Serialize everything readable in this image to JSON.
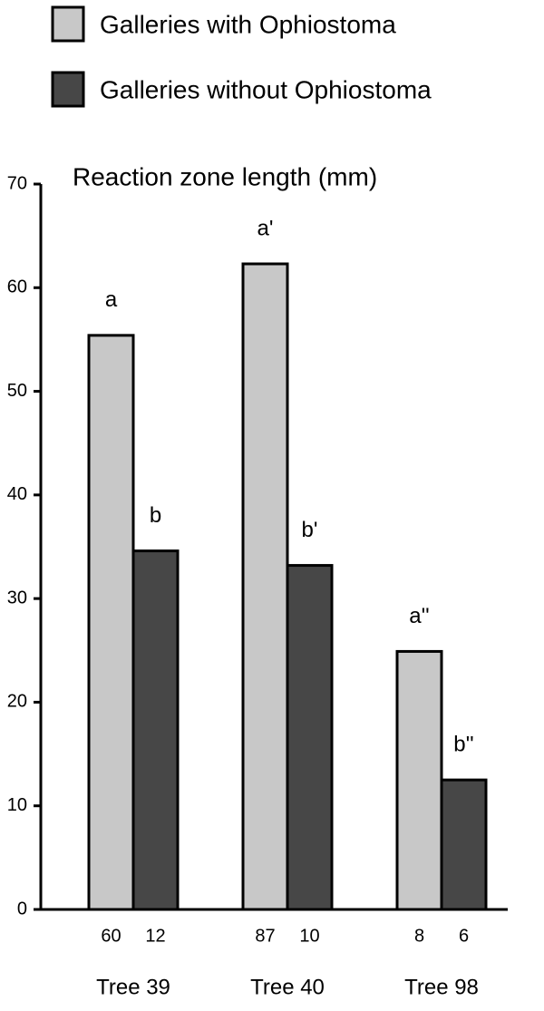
{
  "chart_data": {
    "type": "bar",
    "y_label": "Reaction zone length (mm)",
    "categories": [
      "Tree 39",
      "Tree 40",
      "Tree 98"
    ],
    "series": [
      {
        "name": "Galleries with Ophiostoma",
        "color": "#c8c8c8",
        "values": [
          55.4,
          62.3,
          24.9
        ],
        "letters": [
          "a",
          "a'",
          "a''"
        ],
        "sample_sizes": [
          60,
          87,
          8
        ]
      },
      {
        "name": "Galleries without Ophiostoma",
        "color": "#474747",
        "values": [
          34.6,
          33.2,
          12.5
        ],
        "letters": [
          "b",
          "b'",
          "b''"
        ],
        "sample_sizes": [
          12,
          10,
          6
        ]
      }
    ],
    "ylim": [
      0,
      70
    ],
    "yticks": [
      0,
      10,
      20,
      30,
      40,
      50,
      60,
      70
    ],
    "grid": false
  }
}
